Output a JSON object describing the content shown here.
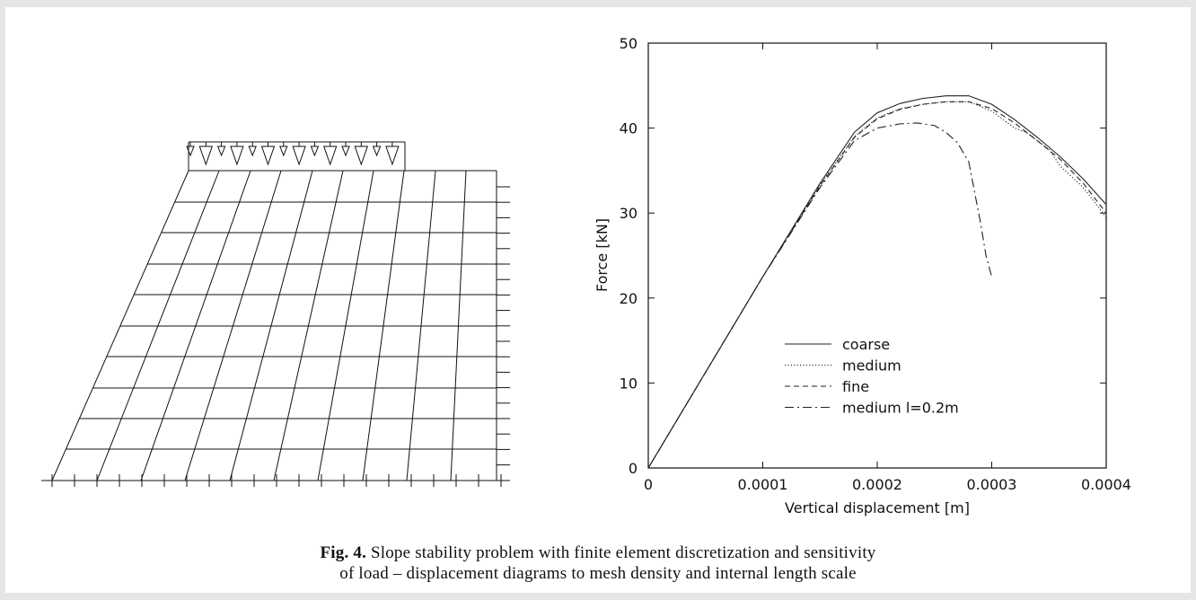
{
  "caption": {
    "label": "Fig. 4.",
    "line1": " Slope stability problem with finite element discretization and sensitivity",
    "line2": "of load – displacement diagrams to mesh density and internal length scale"
  },
  "chart_data": {
    "type": "line",
    "xlabel": "Vertical displacement [m]",
    "ylabel": "Force [kN]",
    "xlim": [
      0,
      0.0004
    ],
    "ylim": [
      0,
      50
    ],
    "xticks": [
      0,
      0.0001,
      0.0002,
      0.0003,
      0.0004
    ],
    "xtick_labels": [
      "0",
      "0.0001",
      "0.0002",
      "0.0003",
      "0.0004"
    ],
    "yticks": [
      0,
      10,
      20,
      30,
      40,
      50
    ],
    "ytick_labels": [
      "0",
      "10",
      "20",
      "30",
      "40",
      "50"
    ],
    "grid": false,
    "legend_position": "lower-center",
    "series": [
      {
        "name": "coarse",
        "style": "solid",
        "points": [
          [
            0,
            0
          ],
          [
            0.0001,
            22.5
          ],
          [
            0.00015,
            33.5
          ],
          [
            0.00018,
            39.5
          ],
          [
            0.0002,
            41.8
          ],
          [
            0.00022,
            42.9
          ],
          [
            0.00024,
            43.5
          ],
          [
            0.00026,
            43.8
          ],
          [
            0.00028,
            43.8
          ],
          [
            0.0003,
            42.8
          ],
          [
            0.00032,
            41.0
          ],
          [
            0.00034,
            38.9
          ],
          [
            0.00036,
            36.6
          ],
          [
            0.00038,
            34.0
          ],
          [
            0.0004,
            31.0
          ]
        ]
      },
      {
        "name": "medium",
        "style": "dotted",
        "points": [
          [
            0,
            0
          ],
          [
            0.0001,
            22.5
          ],
          [
            0.00015,
            33.3
          ],
          [
            0.00018,
            39.0
          ],
          [
            0.0002,
            41.2
          ],
          [
            0.00022,
            42.3
          ],
          [
            0.00024,
            42.8
          ],
          [
            0.00026,
            43.1
          ],
          [
            0.00028,
            43.1
          ],
          [
            0.0003,
            42.0
          ],
          [
            0.00031,
            41.0
          ],
          [
            0.00032,
            40.0
          ],
          [
            0.00033,
            39.5
          ],
          [
            0.00035,
            37.5
          ],
          [
            0.00036,
            35.5
          ],
          [
            0.00038,
            33.0
          ],
          [
            0.0004,
            29.5
          ]
        ]
      },
      {
        "name": "fine",
        "style": "dashed",
        "points": [
          [
            0,
            0
          ],
          [
            0.0001,
            22.5
          ],
          [
            0.00015,
            33.2
          ],
          [
            0.00018,
            38.9
          ],
          [
            0.0002,
            41.1
          ],
          [
            0.00022,
            42.2
          ],
          [
            0.00024,
            42.8
          ],
          [
            0.00026,
            43.1
          ],
          [
            0.00028,
            43.1
          ],
          [
            0.0003,
            42.3
          ],
          [
            0.00032,
            40.6
          ],
          [
            0.00034,
            38.5
          ],
          [
            0.00036,
            36.3
          ],
          [
            0.00038,
            33.5
          ],
          [
            0.0004,
            30.0
          ]
        ]
      },
      {
        "name": "medium l=0.2m",
        "style": "dashdot",
        "points": [
          [
            0,
            0
          ],
          [
            0.0001,
            22.5
          ],
          [
            0.00015,
            33.0
          ],
          [
            0.00018,
            38.5
          ],
          [
            0.0002,
            40.0
          ],
          [
            0.00022,
            40.5
          ],
          [
            0.000235,
            40.6
          ],
          [
            0.00025,
            40.3
          ],
          [
            0.00026,
            39.5
          ],
          [
            0.00027,
            38.3
          ],
          [
            0.00028,
            36.0
          ],
          [
            0.00029,
            29.0
          ],
          [
            0.000295,
            25.0
          ],
          [
            0.0003,
            22.5
          ]
        ]
      }
    ]
  }
}
